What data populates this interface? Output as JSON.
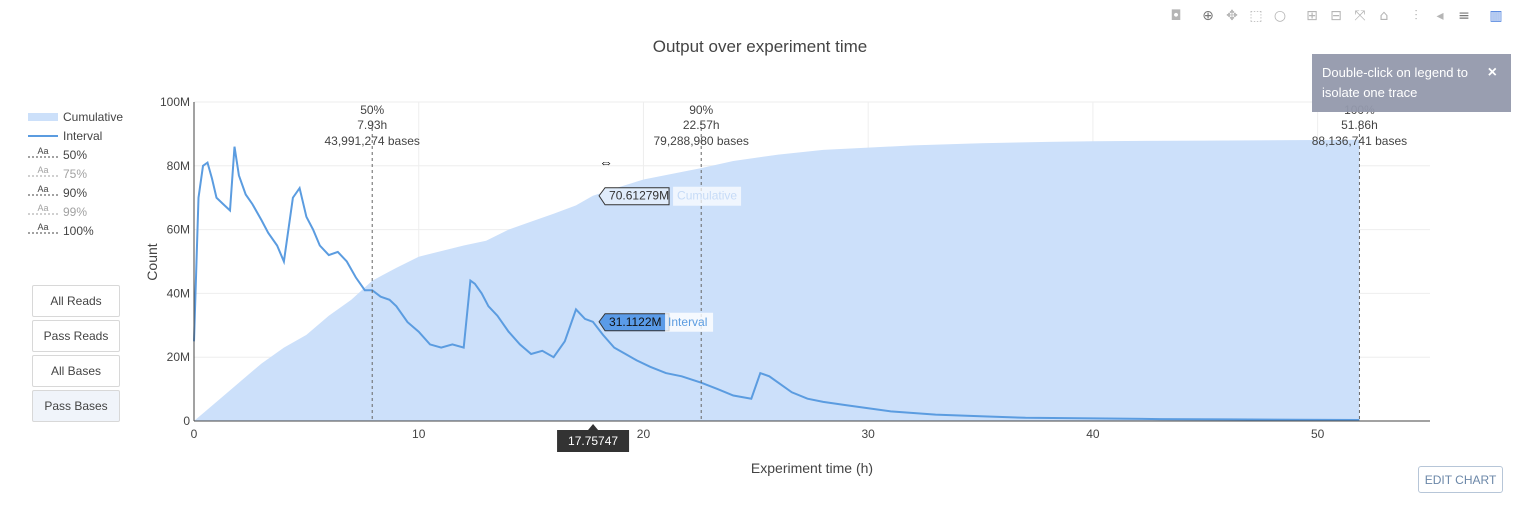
{
  "toolbar": {
    "icons": [
      "camera-icon",
      "zoom-icon",
      "pan-icon",
      "box-select-icon",
      "lasso-icon",
      "zoom-in-icon",
      "zoom-out-icon",
      "autoscale-icon",
      "home-icon",
      "spike-lines-icon",
      "hover-closest-icon",
      "hover-compare-icon",
      "plotly-logo-icon"
    ]
  },
  "notifier": {
    "text": "Double-click on legend to isolate one trace",
    "close": "×"
  },
  "buttons": [
    {
      "label": "All Reads",
      "active": false
    },
    {
      "label": "Pass Reads",
      "active": false
    },
    {
      "label": "All Bases",
      "active": false
    },
    {
      "label": "Pass Bases",
      "active": true
    }
  ],
  "edit_chart": "EDIT CHART",
  "colors": {
    "interval": "#5b9ce0",
    "cumulative_fill": "#cce0fa",
    "hover_box": "#5a9be8",
    "notifier": "#9499ac"
  },
  "chart_data": {
    "type": "area",
    "title": "Output over experiment time",
    "xlabel": "Experiment time (h)",
    "ylabel": "Count",
    "xlim": [
      0,
      55
    ],
    "ylim": [
      0,
      100000000
    ],
    "xticks": [
      0,
      10,
      20,
      30,
      40,
      50
    ],
    "xtick_labels": [
      "0",
      "10",
      "20",
      "30",
      "40",
      "50"
    ],
    "yticks": [
      0,
      20000000,
      40000000,
      60000000,
      80000000,
      100000000
    ],
    "ytick_labels": [
      "0",
      "20M",
      "40M",
      "60M",
      "80M",
      "100M"
    ],
    "grid": true,
    "legend_position": "left",
    "legend": [
      {
        "name": "Cumulative",
        "style": "fill",
        "dim": false
      },
      {
        "name": "Interval",
        "style": "line",
        "dim": false
      },
      {
        "name": "50%",
        "style": "text-dash",
        "dim": false
      },
      {
        "name": "75%",
        "style": "text-dash",
        "dim": true
      },
      {
        "name": "90%",
        "style": "text-dash",
        "dim": false
      },
      {
        "name": "99%",
        "style": "text-dash",
        "dim": true
      },
      {
        "name": "100%",
        "style": "text-dash",
        "dim": false
      }
    ],
    "legend_symbol": "Aa",
    "series": [
      {
        "name": "Cumulative",
        "x": [
          0,
          1,
          2,
          3,
          4,
          5,
          6,
          7,
          7.93,
          9,
          10,
          12,
          13,
          14,
          15,
          16,
          17,
          17.75,
          19,
          20,
          22,
          22.57,
          24,
          26,
          28,
          30,
          32,
          35,
          38,
          40,
          45,
          50,
          51.86
        ],
        "y": [
          0,
          6,
          12,
          18,
          23,
          27,
          33,
          38,
          43.99,
          48,
          51.5,
          55,
          56.5,
          60,
          62.5,
          65,
          67.6,
          70.61,
          73.5,
          75.7,
          78.5,
          79.29,
          81.5,
          83.5,
          85,
          85.7,
          86.4,
          87.1,
          87.5,
          87.7,
          87.9,
          88.1,
          88.14
        ]
      },
      {
        "name": "Interval",
        "x": [
          0,
          0.2,
          0.4,
          0.6,
          0.8,
          1.0,
          1.3,
          1.6,
          1.8,
          2.0,
          2.3,
          2.6,
          3.0,
          3.3,
          3.7,
          4.0,
          4.4,
          4.7,
          5.0,
          5.3,
          5.6,
          6.0,
          6.4,
          6.8,
          7.2,
          7.6,
          7.93,
          8.3,
          8.7,
          9.0,
          9.5,
          10.0,
          10.5,
          11.0,
          11.5,
          12.0,
          12.3,
          12.5,
          12.8,
          13.1,
          13.5,
          14.0,
          14.5,
          15.0,
          15.5,
          16.0,
          16.5,
          17.0,
          17.4,
          17.75,
          18.2,
          18.7,
          19.2,
          19.7,
          20.3,
          21.0,
          21.7,
          22.57,
          23.3,
          24.0,
          24.8,
          25.2,
          25.6,
          26.0,
          26.6,
          27.3,
          28.0,
          29.0,
          30.0,
          31.0,
          33.0,
          35.0,
          37.0,
          40.0,
          43.0,
          46.0,
          49.0,
          51.86
        ],
        "y": [
          25,
          70,
          80,
          81,
          76,
          70,
          68,
          66,
          86,
          77,
          71,
          68,
          63,
          59,
          55,
          50,
          70,
          73,
          64,
          60,
          55,
          52,
          53,
          50,
          45,
          41,
          41,
          39,
          38,
          36,
          31,
          28,
          24,
          23,
          24,
          23,
          44,
          43,
          40,
          36,
          33,
          28,
          24,
          21,
          22,
          20,
          25,
          35,
          32,
          31.11,
          27,
          23,
          21,
          19,
          17,
          15,
          14,
          12,
          10,
          8,
          7,
          15,
          14,
          12,
          9,
          7,
          6,
          5,
          4,
          3,
          2,
          1.5,
          1,
          0.8,
          0.6,
          0.5,
          0.4,
          0.3
        ]
      }
    ],
    "annotations": [
      {
        "label": "50%",
        "time": "7.93h",
        "bases": "43,991,274 bases",
        "x": 7.93
      },
      {
        "label": "90%",
        "time": "22.57h",
        "bases": "79,288,980 bases",
        "x": 22.57
      },
      {
        "label": "100%",
        "time": "51.86h",
        "bases": "88,136,741 bases",
        "x": 51.86
      }
    ],
    "hover": {
      "x_label": "17.75747",
      "x": 17.75747,
      "labels": [
        {
          "series": "Cumulative",
          "value_text": "70.61279M",
          "y": 70.61279
        },
        {
          "series": "Interval",
          "value_text": "31.1122M",
          "y": 31.1122
        }
      ]
    }
  }
}
